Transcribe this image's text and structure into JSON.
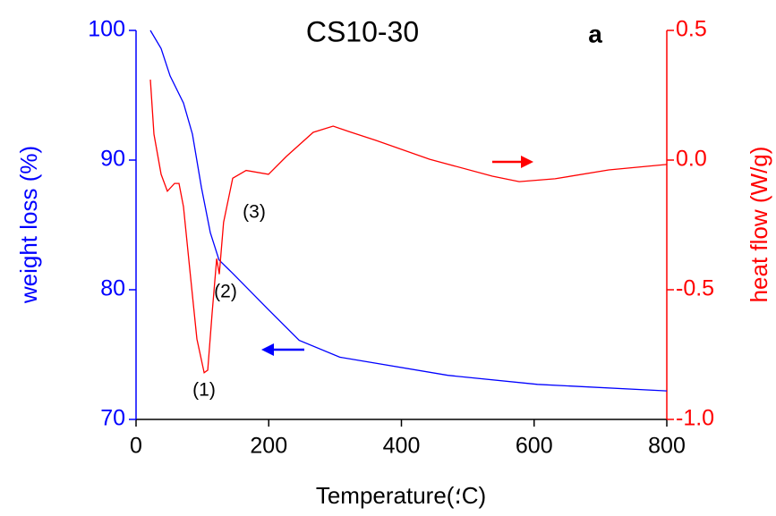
{
  "chart_data": {
    "type": "line",
    "title": "CS10-30",
    "panel_label": "a",
    "xlabel": "Temperature(؛C)",
    "ylabel": "weight loss (%)",
    "y2label": "heat flow (W/g)",
    "annotations": [
      "(1)",
      "(2)",
      "(3)"
    ],
    "xlim": [
      0,
      800
    ],
    "xticks": [
      0,
      200,
      400,
      600,
      800
    ],
    "ylim": [
      70,
      100
    ],
    "yticks": [
      70,
      80,
      90,
      100
    ],
    "y2lim": [
      -1,
      0.5
    ],
    "y2ticks": [
      {
        "value": -1,
        "label": "-1.0"
      },
      {
        "value": -0.5,
        "label": "-0.5"
      },
      {
        "value": 0,
        "label": "0.0"
      },
      {
        "value": 0.5,
        "label": "0.5"
      }
    ],
    "ycolor": "#0000ff",
    "y2color": "#ff0000",
    "series": [
      {
        "color": "#0000ff",
        "axis": "y",
        "x": [
          21.6,
          37.8,
          51.3,
          71.5,
          85,
          98.5,
          112,
          125,
          145,
          199,
          246,
          307,
          470,
          605,
          800
        ],
        "values": [
          100,
          98.6,
          96.5,
          94.4,
          92,
          87.9,
          84.4,
          82.3,
          81.3,
          78.5,
          76.1,
          74.8,
          73.4,
          72.7,
          72.2
        ]
      },
      {
        "color": "#ff0000",
        "axis": "y2",
        "x": [
          21.6,
          27,
          37.8,
          47.2,
          58,
          64.8,
          71.5,
          81,
          91.8,
          102.6,
          108,
          114.7,
          121.5,
          125.5,
          132,
          145.7,
          166,
          199.7,
          226.7,
          267,
          297,
          321,
          361.7,
          442.6,
          537,
          577.6,
          631.6,
          712.6,
          800
        ],
        "values": [
          0.31,
          0.1,
          -0.055,
          -0.12,
          -0.09,
          -0.09,
          -0.18,
          -0.42,
          -0.69,
          -0.82,
          -0.81,
          -0.59,
          -0.38,
          -0.44,
          -0.24,
          -0.07,
          -0.04,
          -0.055,
          0.014,
          0.107,
          0.131,
          0.11,
          0.076,
          0.003,
          -0.062,
          -0.083,
          -0.072,
          -0.038,
          -0.017
        ]
      }
    ]
  }
}
